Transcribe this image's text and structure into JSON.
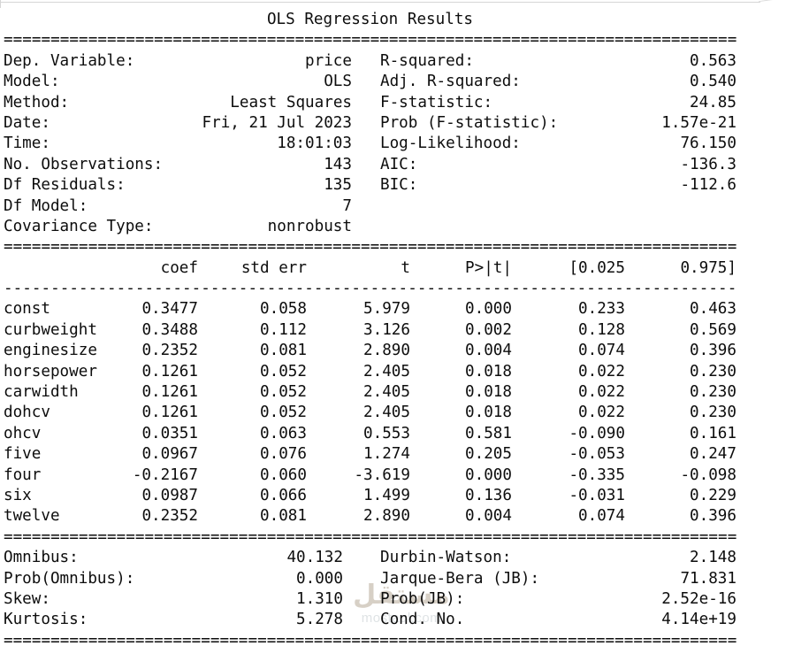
{
  "title": "OLS Regression Results",
  "sep": {
    "eq": "==============================================================================",
    "dash": "------------------------------------------------------------------------------"
  },
  "summary_rows": [
    {
      "ll": "Dep. Variable:",
      "lv": "price",
      "rl": "R-squared:",
      "rv": "0.563"
    },
    {
      "ll": "Model:",
      "lv": "OLS",
      "rl": "Adj. R-squared:",
      "rv": "0.540"
    },
    {
      "ll": "Method:",
      "lv": "Least Squares",
      "rl": "F-statistic:",
      "rv": "24.85"
    },
    {
      "ll": "Date:",
      "lv": "Fri, 21 Jul 2023",
      "rl": "Prob (F-statistic):",
      "rv": "1.57e-21"
    },
    {
      "ll": "Time:",
      "lv": "18:01:03",
      "rl": "Log-Likelihood:",
      "rv": "76.150"
    },
    {
      "ll": "No. Observations:",
      "lv": "143",
      "rl": "AIC:",
      "rv": "-136.3"
    },
    {
      "ll": "Df Residuals:",
      "lv": "135",
      "rl": "BIC:",
      "rv": "-112.6"
    },
    {
      "ll": "Df Model:",
      "lv": "7",
      "rl": "",
      "rv": ""
    },
    {
      "ll": "Covariance Type:",
      "lv": "nonrobust",
      "rl": "",
      "rv": ""
    }
  ],
  "coef_header": {
    "name": "",
    "coef": "coef",
    "std_err": "std err",
    "t": "t",
    "p": "P>|t|",
    "ci_low": "[0.025",
    "ci_high": "0.975]"
  },
  "coef_rows": [
    {
      "name": "const",
      "coef": "0.3477",
      "std_err": "0.058",
      "t": "5.979",
      "p": "0.000",
      "ci_low": "0.233",
      "ci_high": "0.463"
    },
    {
      "name": "curbweight",
      "coef": "0.3488",
      "std_err": "0.112",
      "t": "3.126",
      "p": "0.002",
      "ci_low": "0.128",
      "ci_high": "0.569"
    },
    {
      "name": "enginesize",
      "coef": "0.2352",
      "std_err": "0.081",
      "t": "2.890",
      "p": "0.004",
      "ci_low": "0.074",
      "ci_high": "0.396"
    },
    {
      "name": "horsepower",
      "coef": "0.1261",
      "std_err": "0.052",
      "t": "2.405",
      "p": "0.018",
      "ci_low": "0.022",
      "ci_high": "0.230"
    },
    {
      "name": "carwidth",
      "coef": "0.1261",
      "std_err": "0.052",
      "t": "2.405",
      "p": "0.018",
      "ci_low": "0.022",
      "ci_high": "0.230"
    },
    {
      "name": "dohcv",
      "coef": "0.1261",
      "std_err": "0.052",
      "t": "2.405",
      "p": "0.018",
      "ci_low": "0.022",
      "ci_high": "0.230"
    },
    {
      "name": "ohcv",
      "coef": "0.0351",
      "std_err": "0.063",
      "t": "0.553",
      "p": "0.581",
      "ci_low": "-0.090",
      "ci_high": "0.161"
    },
    {
      "name": "five",
      "coef": "0.0967",
      "std_err": "0.076",
      "t": "1.274",
      "p": "0.205",
      "ci_low": "-0.053",
      "ci_high": "0.247"
    },
    {
      "name": "four",
      "coef": "-0.2167",
      "std_err": "0.060",
      "t": "-3.619",
      "p": "0.000",
      "ci_low": "-0.335",
      "ci_high": "-0.098"
    },
    {
      "name": "six",
      "coef": "0.0987",
      "std_err": "0.066",
      "t": "1.499",
      "p": "0.136",
      "ci_low": "-0.031",
      "ci_high": "0.229"
    },
    {
      "name": "twelve",
      "coef": "0.2352",
      "std_err": "0.081",
      "t": "2.890",
      "p": "0.004",
      "ci_low": "0.074",
      "ci_high": "0.396"
    }
  ],
  "diag_rows": [
    {
      "ll": "Omnibus:",
      "lv": "40.132",
      "rl": "Durbin-Watson:",
      "rv": "2.148"
    },
    {
      "ll": "Prob(Omnibus):",
      "lv": "0.000",
      "rl": "Jarque-Bera (JB):",
      "rv": "71.831"
    },
    {
      "ll": "Skew:",
      "lv": "1.310",
      "rl": "Prob(JB):",
      "rv": "2.52e-16"
    },
    {
      "ll": "Kurtosis:",
      "lv": "5.278",
      "rl": "Cond. No.",
      "rv": "4.14e+19"
    }
  ],
  "watermark": {
    "logo": "مستقل",
    "domain": "mostaql.com"
  },
  "colors": {
    "text": "#0d0d0d",
    "watermark_logo": "#d7d0c6",
    "watermark_domain": "#dfe3e5",
    "border": "#d6d6d6"
  }
}
